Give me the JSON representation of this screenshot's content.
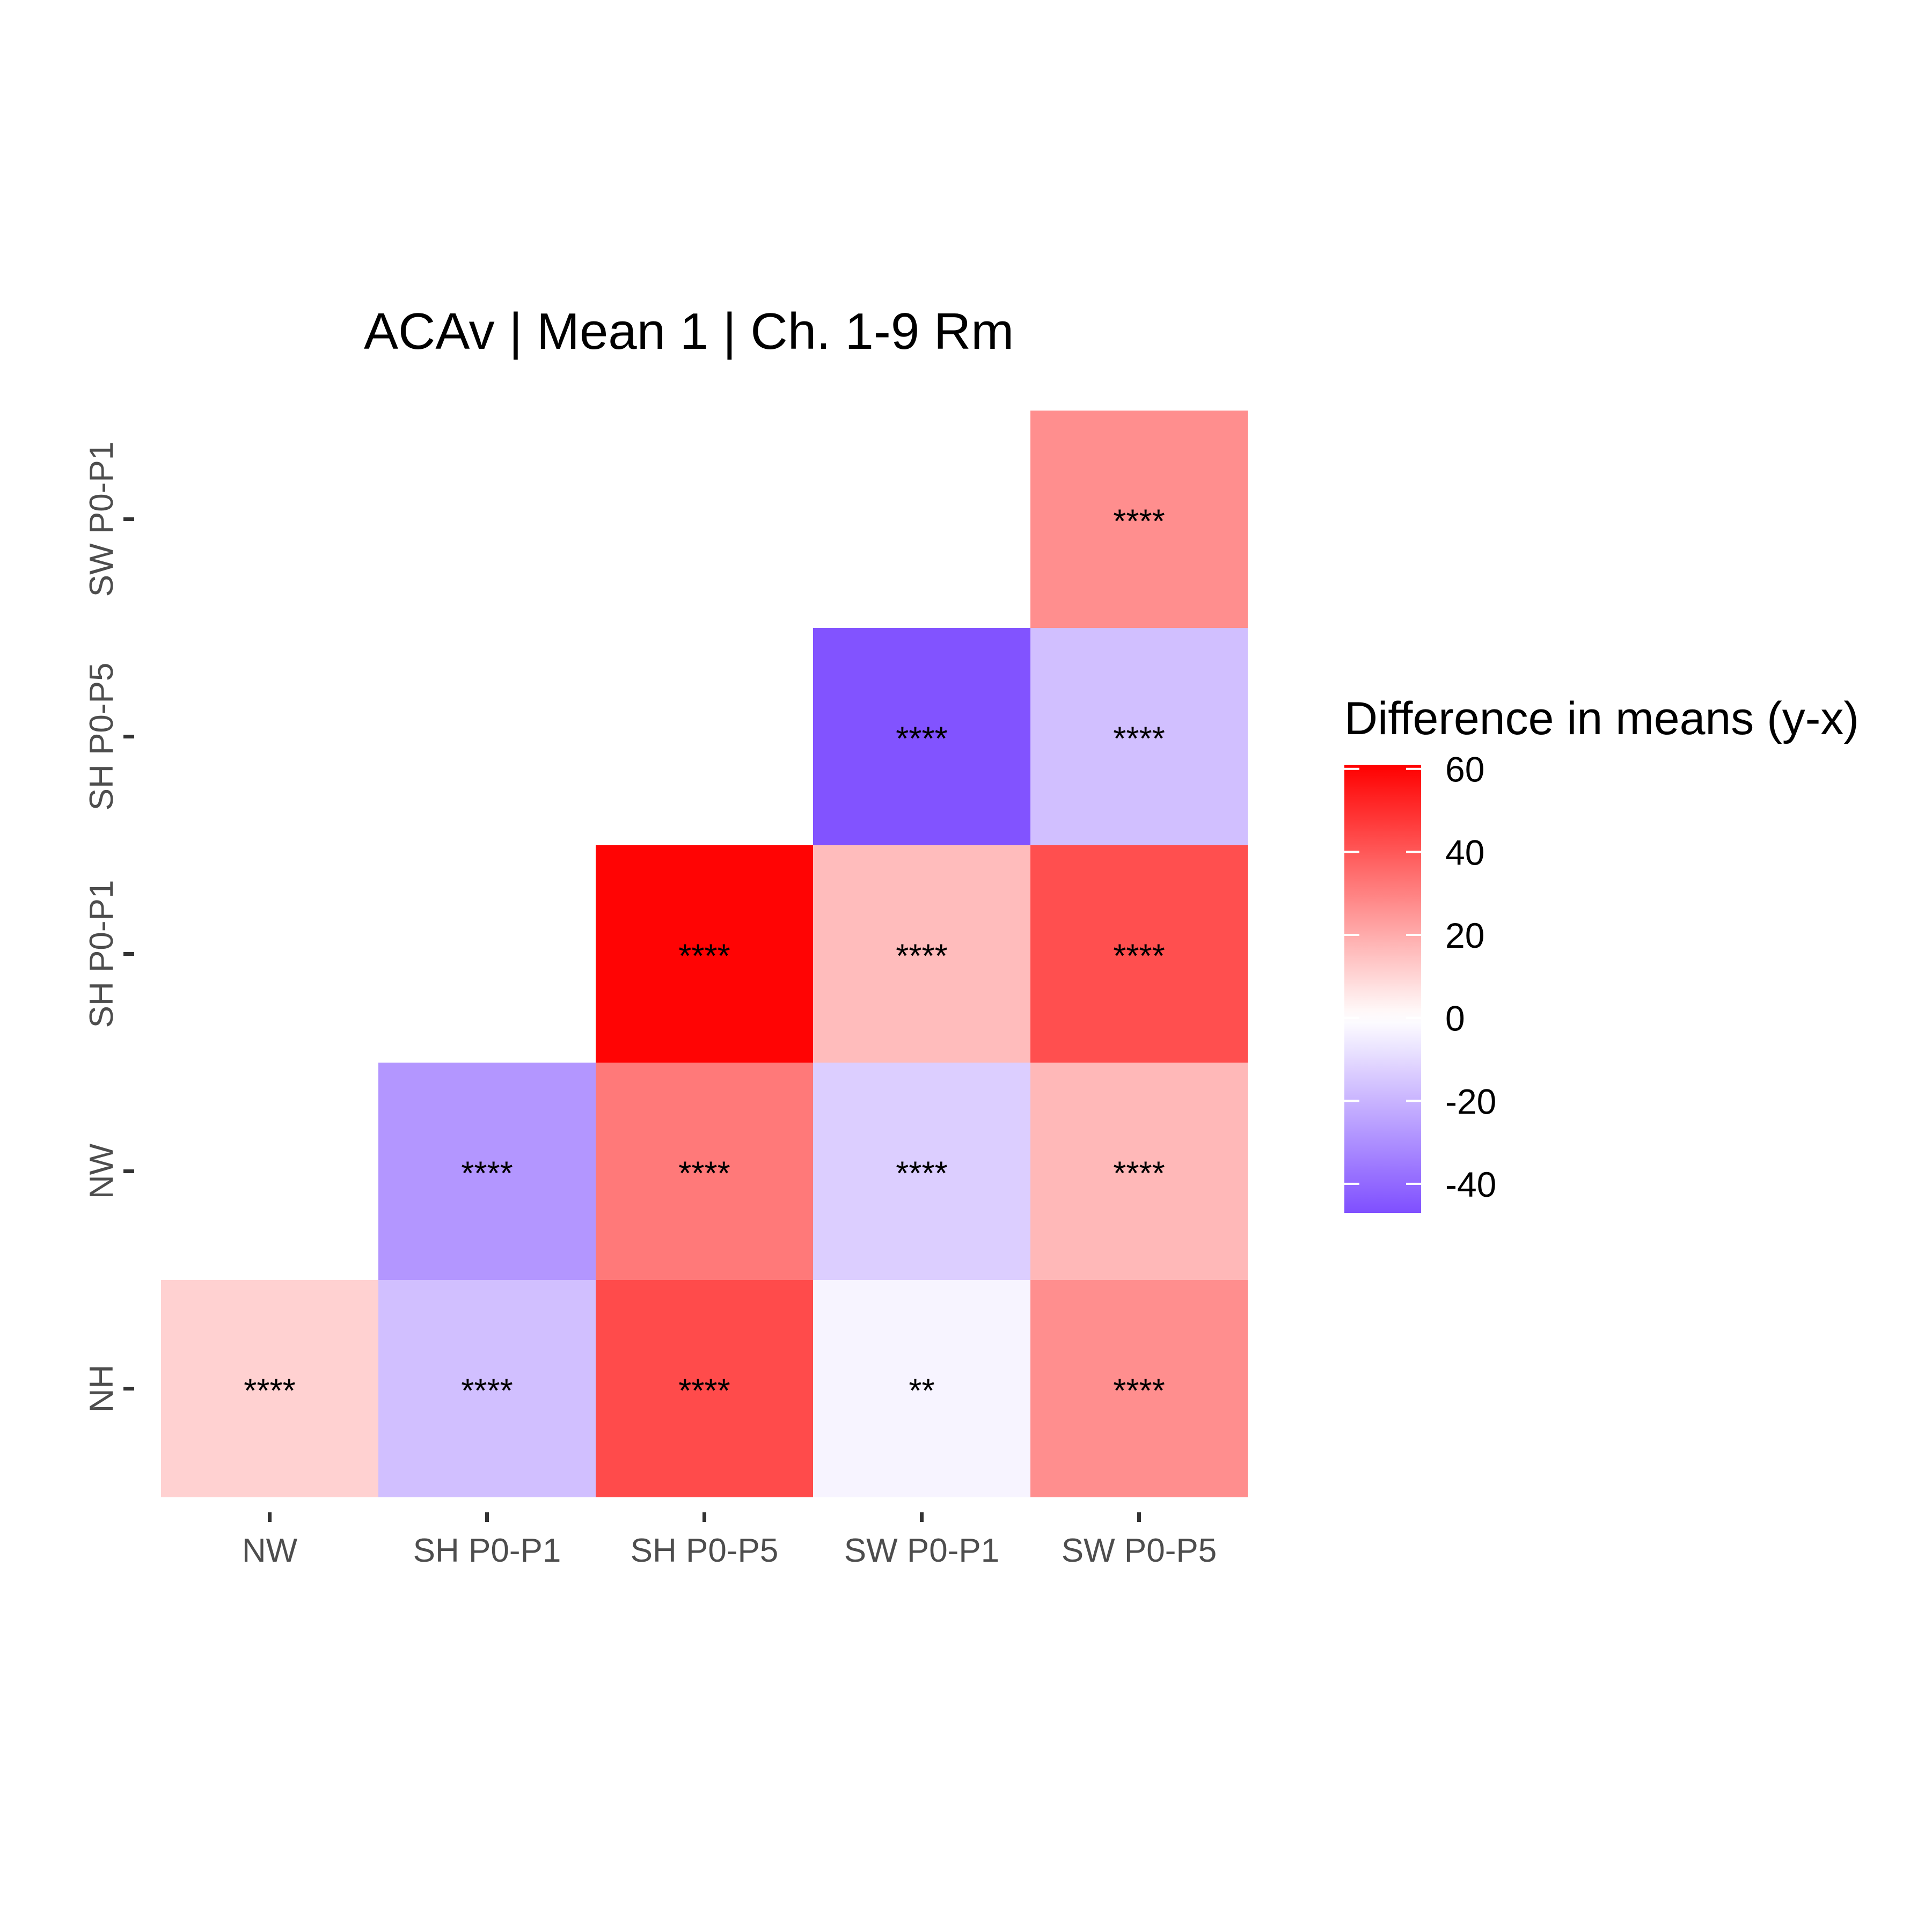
{
  "chart_data": {
    "type": "heatmap",
    "title": "ACAv | Mean 1 | Ch. 1-9 Rm",
    "xlabel": "",
    "ylabel": "",
    "x_categories": [
      "NW",
      "SH P0-P1",
      "SH P0-P5",
      "SW P0-P1",
      "SW P0-P5"
    ],
    "y_categories": [
      "NH",
      "NW",
      "SH P0-P1",
      "SH P0-P5",
      "SW P0-P1"
    ],
    "cells": [
      {
        "x": "NW",
        "y": "NH",
        "value": 11,
        "label": "****"
      },
      {
        "x": "SH P0-P1",
        "y": "NH",
        "value": -17,
        "label": "****"
      },
      {
        "x": "SH P0-P5",
        "y": "NH",
        "value": 43,
        "label": "****"
      },
      {
        "x": "SW P0-P1",
        "y": "NH",
        "value": -3,
        "label": "**"
      },
      {
        "x": "SW P0-P5",
        "y": "NH",
        "value": 27,
        "label": "****"
      },
      {
        "x": "SH P0-P1",
        "y": "NW",
        "value": -28,
        "label": "****"
      },
      {
        "x": "SH P0-P5",
        "y": "NW",
        "value": 32,
        "label": "****"
      },
      {
        "x": "SW P0-P1",
        "y": "NW",
        "value": -13,
        "label": "****"
      },
      {
        "x": "SW P0-P5",
        "y": "NW",
        "value": 17,
        "label": "****"
      },
      {
        "x": "SH P0-P5",
        "y": "SH P0-P1",
        "value": 60,
        "label": "****"
      },
      {
        "x": "SW P0-P1",
        "y": "SH P0-P1",
        "value": 16,
        "label": "****"
      },
      {
        "x": "SW P0-P5",
        "y": "SH P0-P1",
        "value": 42,
        "label": "****"
      },
      {
        "x": "SW P0-P1",
        "y": "SH P0-P5",
        "value": -46,
        "label": "****"
      },
      {
        "x": "SW P0-P5",
        "y": "SH P0-P5",
        "value": -17,
        "label": "****"
      },
      {
        "x": "SW P0-P5",
        "y": "SW P0-P1",
        "value": 27,
        "label": "****"
      }
    ],
    "color_scale": {
      "low": "#7f4fff",
      "mid": "#ffffff",
      "high": "#ff0000",
      "midpoint": 0,
      "range": [
        -47,
        61
      ],
      "breaks": [
        60,
        40,
        20,
        0,
        -20,
        -40
      ]
    },
    "legend": {
      "title": "Difference in means (y-x)",
      "position": "right"
    },
    "grid": false
  }
}
